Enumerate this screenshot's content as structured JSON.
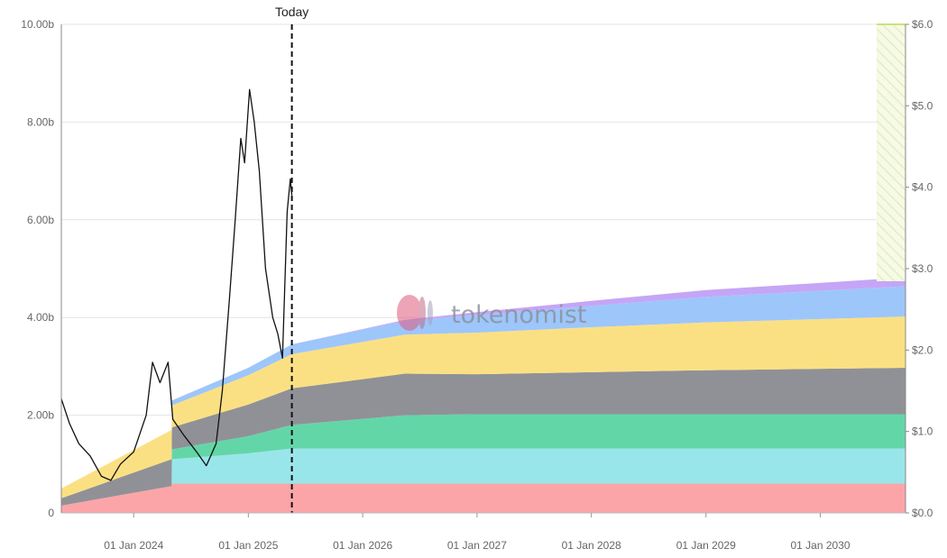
{
  "chart_data": {
    "type": "area",
    "title": "",
    "today_label": "Today",
    "watermark": "tokenomist",
    "x_range": [
      "2023-05-15",
      "2030-09-30"
    ],
    "x_ticks": [
      {
        "date": "2024-01-01",
        "label": "01 Jan 2024"
      },
      {
        "date": "2025-01-01",
        "label": "01 Jan 2025"
      },
      {
        "date": "2026-01-01",
        "label": "01 Jan 2026"
      },
      {
        "date": "2027-01-01",
        "label": "01 Jan 2027"
      },
      {
        "date": "2028-01-01",
        "label": "01 Jan 2028"
      },
      {
        "date": "2029-01-01",
        "label": "01 Jan 2029"
      },
      {
        "date": "2030-01-01",
        "label": "01 Jan 2030"
      }
    ],
    "y_left": {
      "range": [
        0,
        10
      ],
      "unit": "b",
      "ticks": [
        "0",
        "2.00b",
        "4.00b",
        "6.00b",
        "8.00b",
        "10.00b"
      ]
    },
    "y_right": {
      "range": [
        0,
        6
      ],
      "ticks": [
        "$0.0",
        "$1.0",
        "$2.0",
        "$3.0",
        "$4.0",
        "$5.0",
        "$6.0"
      ]
    },
    "today_date": "2025-05-20",
    "stack_dates": [
      "2023-05-15",
      "2024-05-01",
      "2024-05-02",
      "2025-01-01",
      "2025-05-20",
      "2026-05-15",
      "2027-01-01",
      "2028-01-01",
      "2029-01-01",
      "2030-09-30"
    ],
    "series": [
      {
        "color": "#fca5a9",
        "values": [
          0.15,
          0.55,
          0.6,
          0.6,
          0.6,
          0.6,
          0.6,
          0.6,
          0.6,
          0.6
        ]
      },
      {
        "color": "#99e6ea",
        "values": [
          0.0,
          0.0,
          0.5,
          0.62,
          0.72,
          0.72,
          0.72,
          0.72,
          0.72,
          0.72
        ]
      },
      {
        "color": "#63d6a8",
        "values": [
          0.0,
          0.0,
          0.2,
          0.35,
          0.48,
          0.68,
          0.7,
          0.7,
          0.7,
          0.7
        ]
      },
      {
        "color": "#909196",
        "values": [
          0.15,
          0.55,
          0.45,
          0.65,
          0.75,
          0.85,
          0.82,
          0.86,
          0.9,
          0.95
        ]
      },
      {
        "color": "#fbe083",
        "values": [
          0.2,
          0.6,
          0.45,
          0.6,
          0.7,
          0.8,
          0.85,
          0.92,
          0.98,
          1.05
        ]
      },
      {
        "color": "#9dc6fb",
        "values": [
          0.0,
          0.0,
          0.1,
          0.15,
          0.2,
          0.28,
          0.36,
          0.44,
          0.52,
          0.62
        ]
      },
      {
        "color": "#c5a5f6",
        "values": [
          0.0,
          0.0,
          0.0,
          0.0,
          0.0,
          0.02,
          0.06,
          0.1,
          0.14,
          0.18
        ]
      }
    ],
    "price": {
      "axis": "right",
      "color": "#111111",
      "dates": [
        "2023-05-15",
        "2023-06-10",
        "2023-07-10",
        "2023-08-15",
        "2023-09-20",
        "2023-10-20",
        "2023-11-20",
        "2024-01-01",
        "2024-02-10",
        "2024-03-01",
        "2024-03-25",
        "2024-04-20",
        "2024-05-05",
        "2024-06-10",
        "2024-07-20",
        "2024-08-20",
        "2024-09-20",
        "2024-10-10",
        "2024-11-01",
        "2024-11-20",
        "2024-12-08",
        "2024-12-20",
        "2025-01-05",
        "2025-01-20",
        "2025-02-05",
        "2025-02-25",
        "2025-03-20",
        "2025-04-05",
        "2025-04-20",
        "2025-05-05",
        "2025-05-15",
        "2025-05-20"
      ],
      "values": [
        1.4,
        1.1,
        0.85,
        0.7,
        0.45,
        0.4,
        0.6,
        0.75,
        1.2,
        1.85,
        1.6,
        1.85,
        1.15,
        0.95,
        0.75,
        0.58,
        0.85,
        1.5,
        2.6,
        3.6,
        4.6,
        4.3,
        5.2,
        4.8,
        4.2,
        3.0,
        2.4,
        2.2,
        1.9,
        3.7,
        4.1,
        3.9
      ]
    },
    "legend": "none",
    "grid": true
  }
}
